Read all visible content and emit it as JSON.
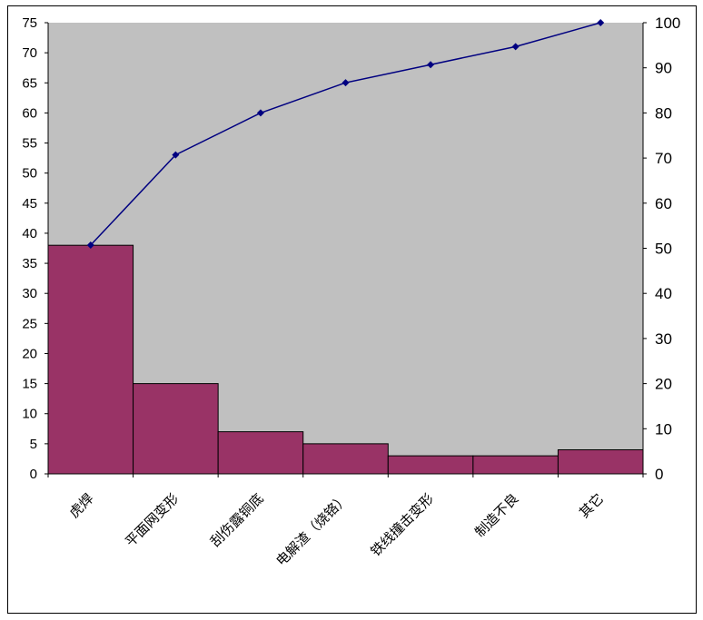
{
  "chart_data": {
    "type": "pareto",
    "categories": [
      "虎焊",
      "平面网变形",
      "刮伤露铜底",
      "电解渣（烧铬）",
      "铁线撞击变形",
      "制造不良",
      "其它"
    ],
    "series": [
      {
        "type": "bar",
        "axis": "left",
        "values": [
          38,
          15,
          7,
          5,
          3,
          3,
          4
        ]
      },
      {
        "type": "line",
        "axis": "right",
        "values": [
          50.7,
          70.7,
          80.0,
          86.7,
          90.7,
          94.7,
          100.0
        ]
      }
    ],
    "left_axis": {
      "ylim": [
        0,
        75
      ],
      "ticks": [
        0,
        5,
        10,
        15,
        20,
        25,
        30,
        35,
        40,
        45,
        50,
        55,
        60,
        65,
        70,
        75
      ]
    },
    "right_axis": {
      "ylim": [
        0,
        100
      ],
      "ticks": [
        0,
        10,
        20,
        30,
        40,
        50,
        60,
        70,
        80,
        90,
        100
      ]
    },
    "title": "",
    "xlabel": "",
    "ylabel": "",
    "grid": false,
    "legend": "none",
    "colors": {
      "plot_bg": "#c0c0c0",
      "bar_fill": "#993366",
      "bar_edge": "#000000",
      "line": "#000080"
    }
  }
}
